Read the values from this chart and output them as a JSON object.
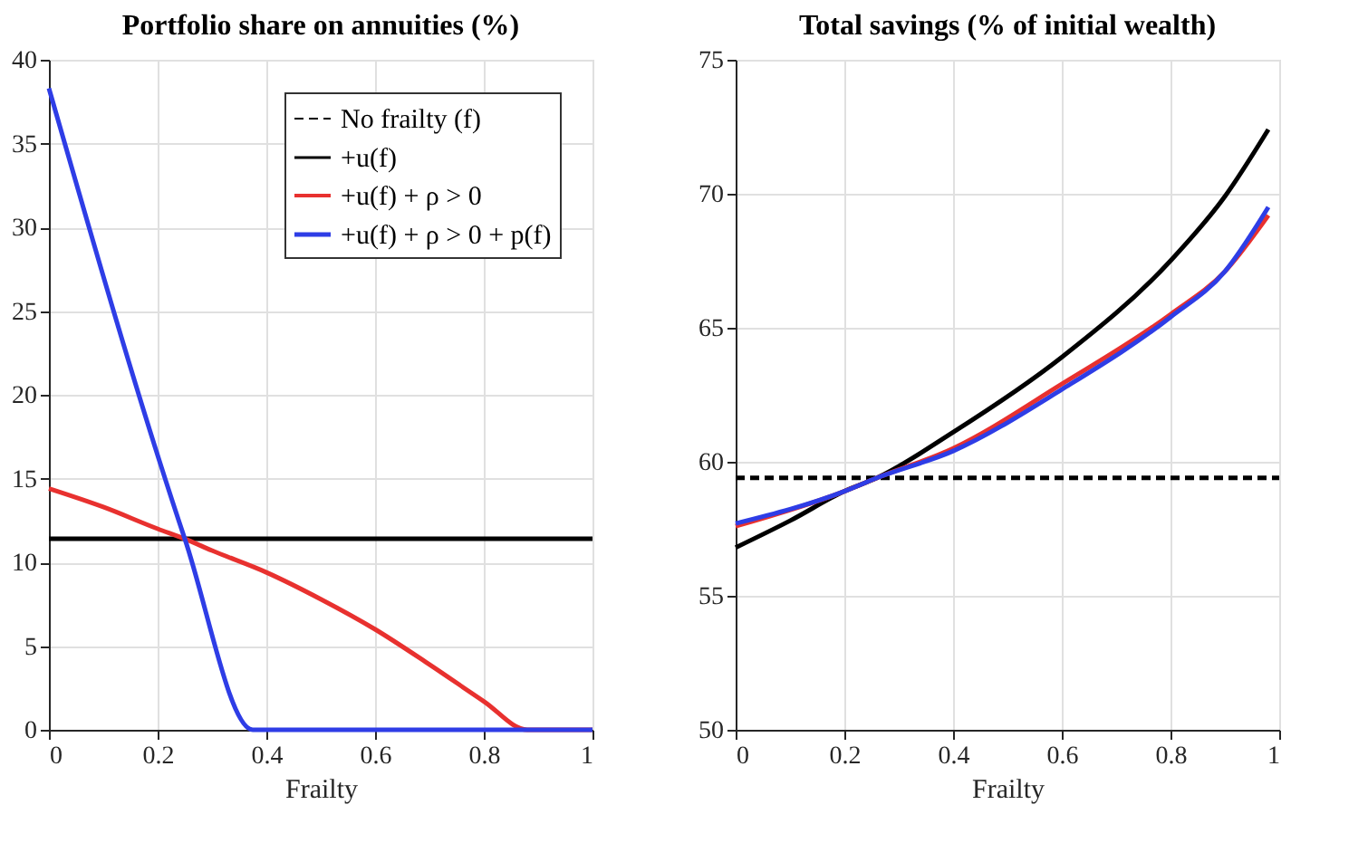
{
  "chart_data": [
    {
      "type": "line",
      "title": "Portfolio share on annuities (%)",
      "xlabel": "Frailty",
      "xlim": [
        0,
        1
      ],
      "xticks": [
        0,
        0.2,
        0.4,
        0.6,
        0.8,
        1
      ],
      "ylim": [
        0,
        40
      ],
      "yticks": [
        0,
        5,
        10,
        15,
        20,
        25,
        30,
        35,
        40
      ],
      "grid": true,
      "legend": "top right",
      "series": [
        {
          "name": "No frailty (f)",
          "color": "#000000",
          "line_style": "dashed"
        },
        {
          "name": "+u(f)",
          "color": "#000000",
          "line_style": "solid",
          "x": [
            0,
            1
          ],
          "values": [
            11.4,
            11.4
          ]
        },
        {
          "name": "+u(f) + ρ > 0",
          "color": "#e8312f",
          "line_style": "solid",
          "x": [
            0,
            0.1,
            0.2,
            0.25,
            0.3,
            0.4,
            0.5,
            0.6,
            0.7,
            0.8,
            0.88,
            1
          ],
          "values": [
            14.4,
            13.3,
            12.0,
            11.4,
            10.7,
            9.4,
            7.8,
            6.0,
            3.9,
            1.7,
            0,
            0
          ]
        },
        {
          "name": "+u(f) + ρ > 0 + p(f)",
          "color": "#2e3de6",
          "line_style": "solid",
          "x": [
            0,
            0.25,
            0.375,
            1
          ],
          "values": [
            38.3,
            11.4,
            0,
            0
          ]
        }
      ]
    },
    {
      "type": "line",
      "title": "Total savings (% of initial wealth)",
      "xlabel": "Frailty",
      "xlim": [
        0,
        1
      ],
      "xticks": [
        0,
        0.2,
        0.4,
        0.6,
        0.8,
        1
      ],
      "ylim": [
        50,
        75
      ],
      "yticks": [
        50,
        55,
        60,
        65,
        70,
        75
      ],
      "grid": true,
      "series": [
        {
          "color": "#000000",
          "line_style": "dashed",
          "x": [
            0,
            1
          ],
          "values": [
            59.4,
            59.4
          ]
        },
        {
          "color": "#000000",
          "line_style": "solid",
          "x": [
            0,
            0.1,
            0.2,
            0.26,
            0.4,
            0.6,
            0.8,
            0.9,
            0.98
          ],
          "values": [
            56.8,
            57.8,
            58.9,
            59.4,
            61.1,
            63.9,
            67.5,
            69.9,
            72.4
          ]
        },
        {
          "color": "#e8312f",
          "line_style": "solid",
          "x": [
            0,
            0.2,
            0.26,
            0.4,
            0.6,
            0.8,
            0.9,
            0.98
          ],
          "values": [
            57.6,
            58.9,
            59.4,
            60.5,
            62.9,
            65.5,
            67.1,
            69.2
          ]
        },
        {
          "color": "#2e3de6",
          "line_style": "solid",
          "x": [
            0,
            0.2,
            0.26,
            0.4,
            0.6,
            0.8,
            0.9,
            0.98
          ],
          "values": [
            57.7,
            58.9,
            59.4,
            60.4,
            62.7,
            65.4,
            67.1,
            69.5
          ]
        }
      ]
    }
  ]
}
